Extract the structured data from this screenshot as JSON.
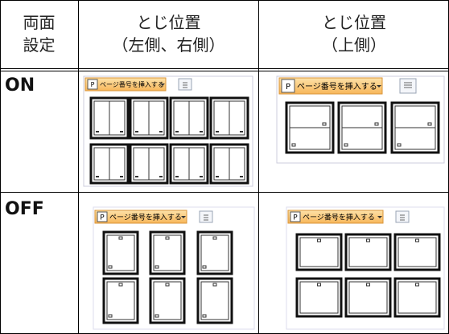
{
  "table": {
    "header": [
      [
        "両面",
        "設定"
      ],
      [
        "とじ位置",
        "（左側、右側）"
      ],
      [
        "とじ位置",
        "（上側）"
      ]
    ],
    "rows": [
      {
        "label": "ON",
        "shots": [
          {
            "icon": "P",
            "button": "ページ番号を挿入する"
          },
          {
            "icon": "P",
            "button": "ページ番号を挿入する"
          }
        ]
      },
      {
        "label": "OFF",
        "shots": [
          {
            "icon": "P",
            "button": "ページ番号を挿入する"
          },
          {
            "icon": "P",
            "button": "ページ番号を挿入する"
          }
        ]
      }
    ]
  }
}
